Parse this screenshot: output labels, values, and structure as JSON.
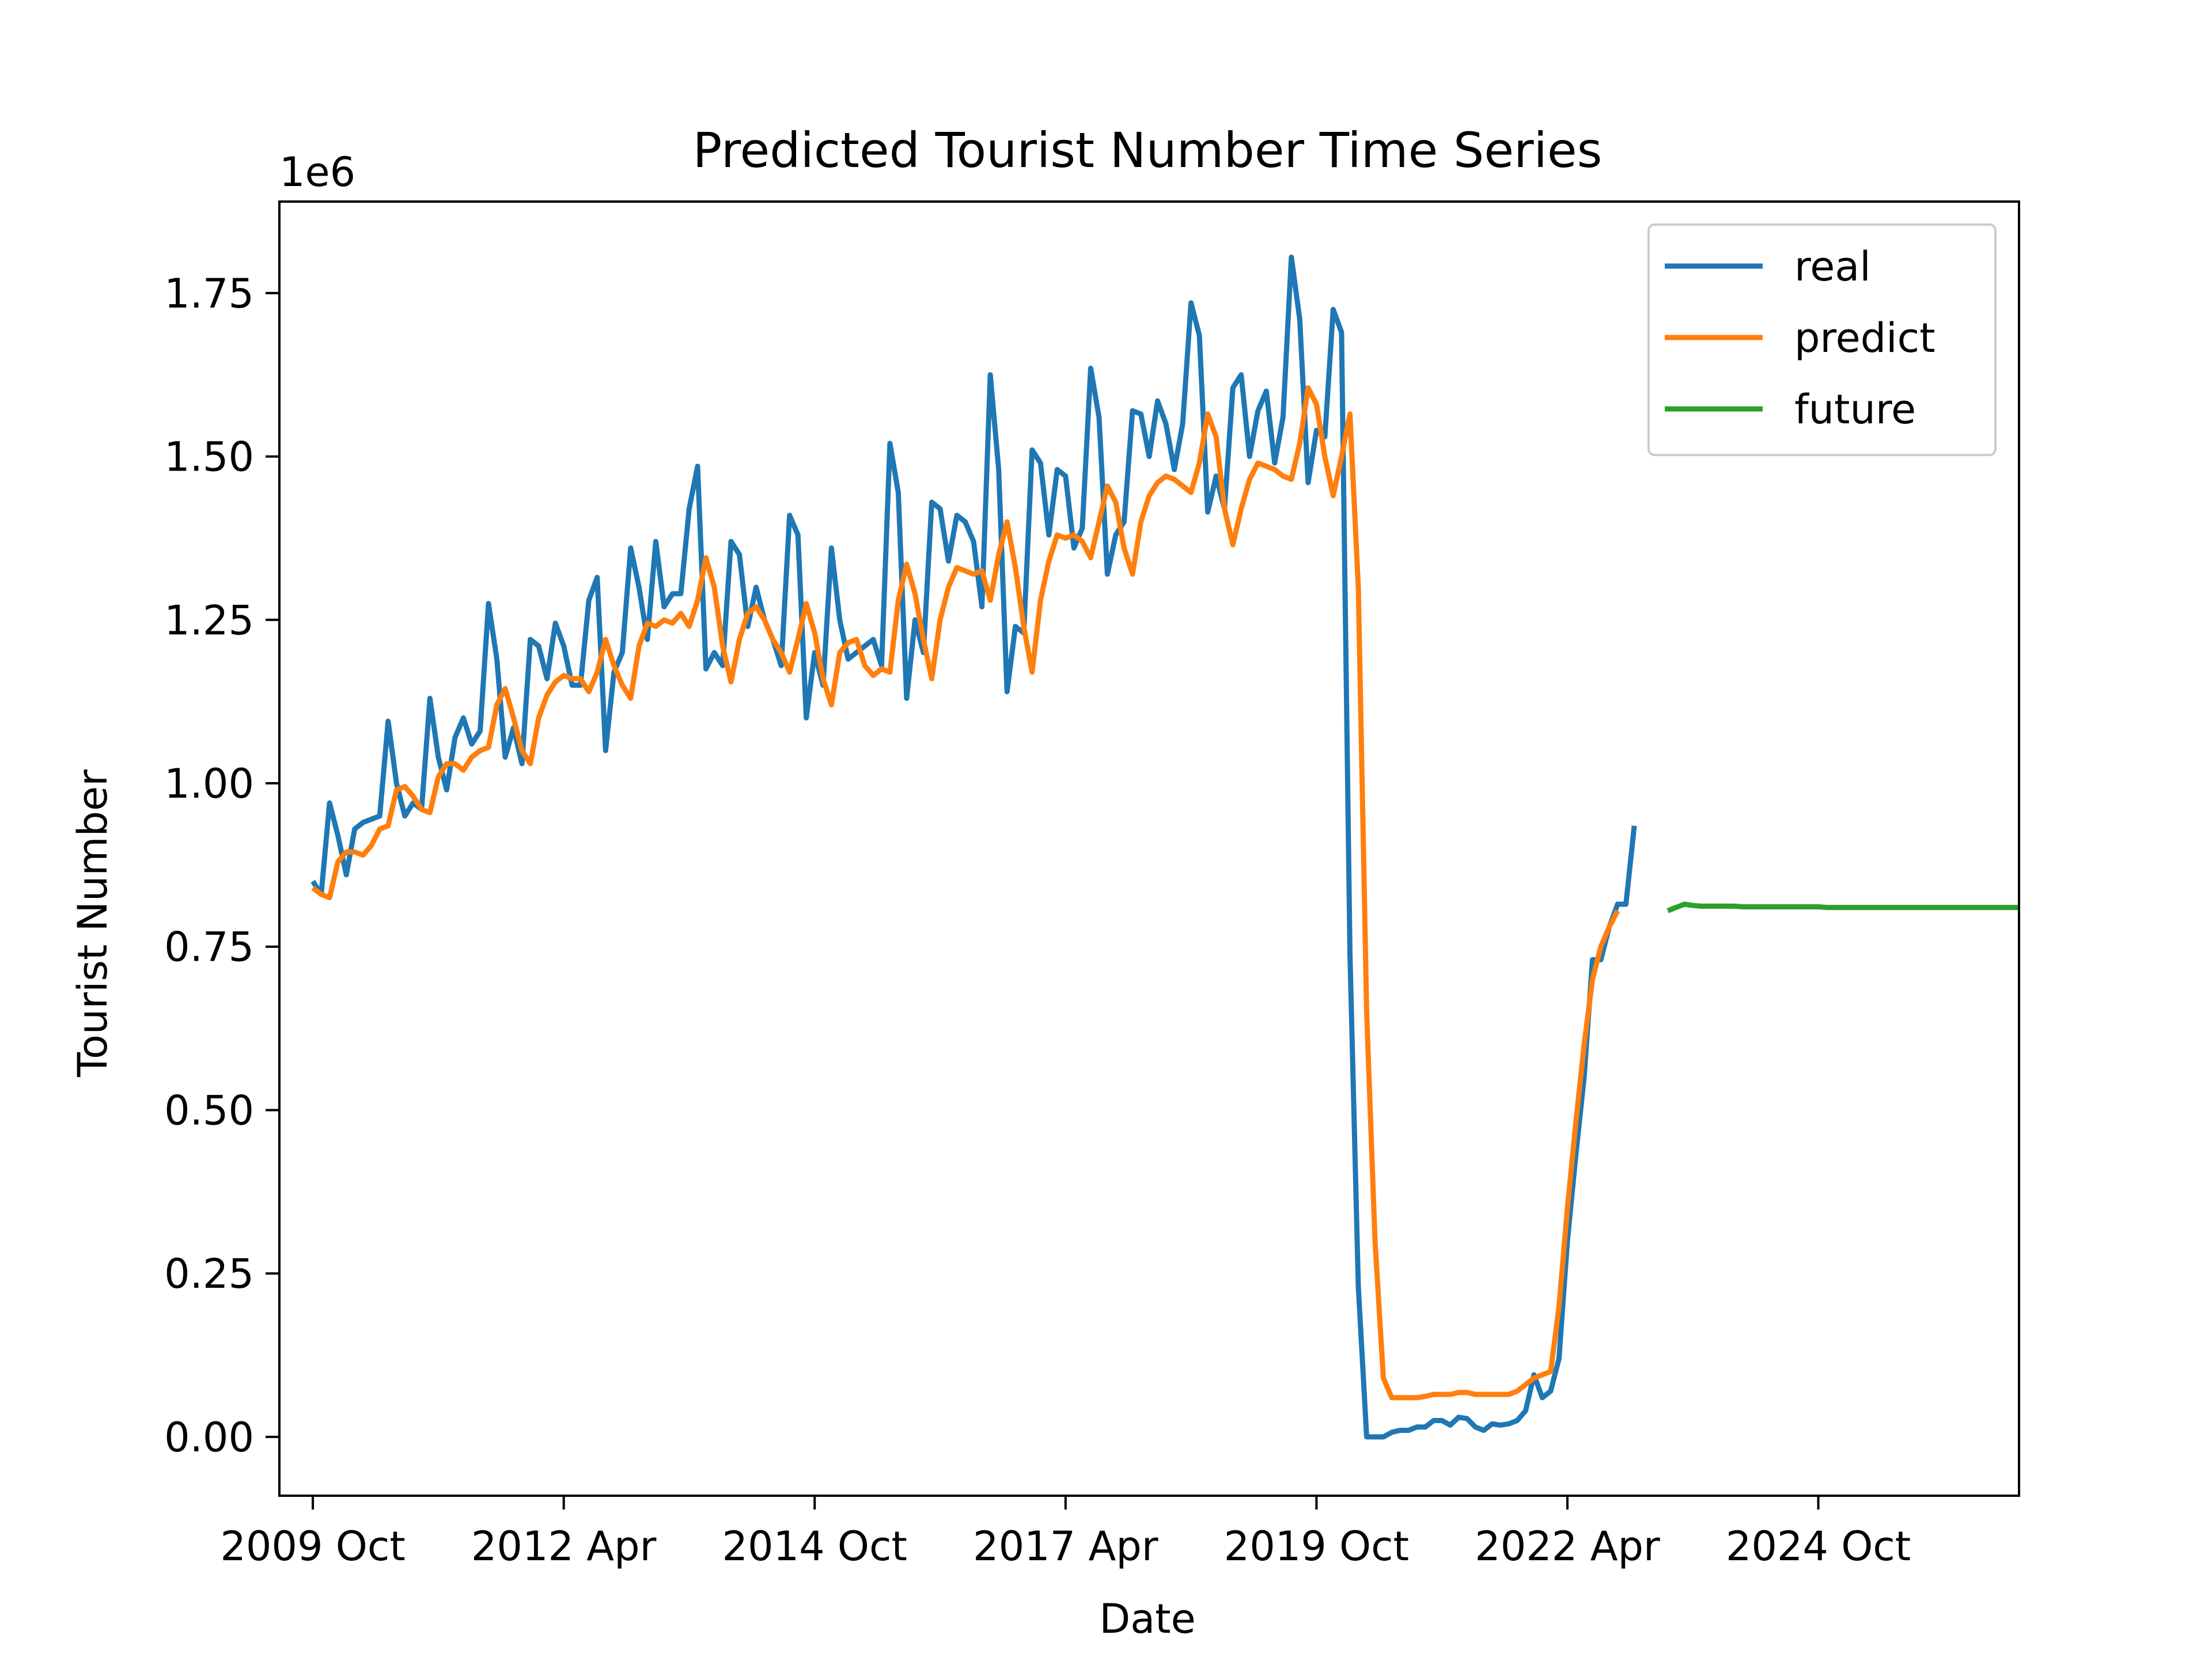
{
  "chart_data": {
    "type": "line",
    "title": "Predicted Tourist Number Time Series",
    "xlabel": "Date",
    "ylabel": "Tourist Number",
    "y_offset_label": "1e6",
    "y_multiplier": 1000000,
    "xlim": [
      "2009-06",
      "2026-10"
    ],
    "ylim": [
      -0.09,
      1.89
    ],
    "x_ticks": [
      {
        "date": "2009-10",
        "label": "2009 Oct"
      },
      {
        "date": "2012-04",
        "label": "2012 Apr"
      },
      {
        "date": "2014-10",
        "label": "2014 Oct"
      },
      {
        "date": "2017-04",
        "label": "2017 Apr"
      },
      {
        "date": "2019-10",
        "label": "2019 Oct"
      },
      {
        "date": "2022-04",
        "label": "2022 Apr"
      },
      {
        "date": "2024-10",
        "label": "2024 Oct"
      }
    ],
    "y_ticks": [
      {
        "value": 0.0,
        "label": "0.00"
      },
      {
        "value": 0.25,
        "label": "0.25"
      },
      {
        "value": 0.5,
        "label": "0.50"
      },
      {
        "value": 0.75,
        "label": "0.75"
      },
      {
        "value": 1.0,
        "label": "1.00"
      },
      {
        "value": 1.25,
        "label": "1.25"
      },
      {
        "value": 1.5,
        "label": "1.50"
      },
      {
        "value": 1.75,
        "label": "1.75"
      }
    ],
    "grid": false,
    "legend_position": "top-right",
    "series": [
      {
        "name": "real",
        "color": "#1f77b4",
        "x_start": "2009-10",
        "step_months": 1,
        "values": [
          0.85,
          0.83,
          0.97,
          0.92,
          0.86,
          0.93,
          0.94,
          0.945,
          0.95,
          1.095,
          1.0,
          0.95,
          0.97,
          0.96,
          1.13,
          1.04,
          0.99,
          1.07,
          1.1,
          1.06,
          1.08,
          1.275,
          1.19,
          1.04,
          1.085,
          1.03,
          1.22,
          1.21,
          1.16,
          1.245,
          1.21,
          1.15,
          1.15,
          1.28,
          1.315,
          1.05,
          1.17,
          1.2,
          1.36,
          1.3,
          1.22,
          1.37,
          1.27,
          1.29,
          1.29,
          1.42,
          1.485,
          1.175,
          1.2,
          1.18,
          1.37,
          1.35,
          1.24,
          1.3,
          1.25,
          1.22,
          1.18,
          1.41,
          1.38,
          1.1,
          1.2,
          1.15,
          1.36,
          1.25,
          1.19,
          1.2,
          1.21,
          1.22,
          1.18,
          1.52,
          1.445,
          1.13,
          1.25,
          1.2,
          1.43,
          1.42,
          1.34,
          1.41,
          1.4,
          1.37,
          1.27,
          1.625,
          1.48,
          1.14,
          1.24,
          1.23,
          1.51,
          1.49,
          1.38,
          1.48,
          1.47,
          1.36,
          1.39,
          1.635,
          1.56,
          1.32,
          1.38,
          1.4,
          1.57,
          1.565,
          1.5,
          1.585,
          1.55,
          1.48,
          1.55,
          1.735,
          1.685,
          1.415,
          1.47,
          1.42,
          1.605,
          1.625,
          1.5,
          1.57,
          1.6,
          1.49,
          1.56,
          1.805,
          1.71,
          1.46,
          1.54,
          1.53,
          1.725,
          1.69,
          0.74,
          0.23,
          0.0,
          0.0,
          0.0,
          0.007,
          0.01,
          0.01,
          0.015,
          0.015,
          0.025,
          0.025,
          0.018,
          0.03,
          0.028,
          0.015,
          0.01,
          0.02,
          0.018,
          0.02,
          0.025,
          0.04,
          0.095,
          0.06,
          0.07,
          0.12,
          0.3,
          0.43,
          0.55,
          0.73,
          0.73,
          0.78,
          0.815,
          0.815,
          0.935
        ]
      },
      {
        "name": "predict",
        "color": "#ff7f0e",
        "x_start": "2009-10",
        "step_months": 1,
        "values": [
          0.84,
          0.83,
          0.825,
          0.88,
          0.895,
          0.895,
          0.89,
          0.905,
          0.93,
          0.935,
          0.99,
          0.995,
          0.98,
          0.96,
          0.955,
          1.01,
          1.03,
          1.03,
          1.02,
          1.04,
          1.05,
          1.055,
          1.12,
          1.145,
          1.1,
          1.05,
          1.03,
          1.1,
          1.135,
          1.155,
          1.165,
          1.16,
          1.16,
          1.14,
          1.17,
          1.22,
          1.18,
          1.15,
          1.13,
          1.21,
          1.245,
          1.24,
          1.25,
          1.245,
          1.26,
          1.24,
          1.28,
          1.345,
          1.3,
          1.21,
          1.155,
          1.22,
          1.26,
          1.27,
          1.25,
          1.22,
          1.2,
          1.17,
          1.22,
          1.275,
          1.23,
          1.16,
          1.12,
          1.2,
          1.215,
          1.22,
          1.18,
          1.165,
          1.175,
          1.17,
          1.28,
          1.335,
          1.29,
          1.22,
          1.16,
          1.25,
          1.3,
          1.33,
          1.325,
          1.32,
          1.325,
          1.28,
          1.35,
          1.4,
          1.33,
          1.24,
          1.17,
          1.28,
          1.34,
          1.38,
          1.375,
          1.38,
          1.37,
          1.345,
          1.4,
          1.455,
          1.43,
          1.36,
          1.32,
          1.4,
          1.44,
          1.46,
          1.47,
          1.465,
          1.455,
          1.445,
          1.49,
          1.565,
          1.53,
          1.42,
          1.365,
          1.42,
          1.465,
          1.49,
          1.485,
          1.48,
          1.47,
          1.465,
          1.52,
          1.605,
          1.58,
          1.5,
          1.44,
          1.5,
          1.565,
          1.3,
          0.65,
          0.3,
          0.09,
          0.06,
          0.06,
          0.06,
          0.06,
          0.062,
          0.065,
          0.065,
          0.065,
          0.068,
          0.068,
          0.065,
          0.065,
          0.065,
          0.065,
          0.065,
          0.07,
          0.08,
          0.09,
          0.095,
          0.1,
          0.2,
          0.35,
          0.48,
          0.6,
          0.7,
          0.75,
          0.78,
          0.805
        ]
      },
      {
        "name": "future",
        "color": "#2ca02c",
        "x_start": "2023-04",
        "step_months": 1,
        "values": [
          0.805,
          0.81,
          0.815,
          0.813,
          0.812,
          0.812,
          0.812,
          0.812,
          0.812,
          0.811,
          0.811,
          0.811,
          0.811,
          0.811,
          0.811,
          0.811,
          0.811,
          0.811,
          0.811,
          0.81,
          0.81,
          0.81,
          0.81,
          0.81,
          0.81,
          0.81,
          0.81,
          0.81,
          0.81,
          0.81,
          0.81,
          0.81,
          0.81,
          0.81,
          0.81,
          0.81,
          0.81,
          0.81,
          0.81,
          0.81,
          0.81,
          0.81,
          0.81,
          0.81,
          0.81,
          0.81,
          0.81,
          0.81,
          0.81,
          0.809,
          0.809,
          0.809,
          0.809,
          0.809,
          0.809,
          0.809,
          0.809,
          0.809,
          0.809,
          0.809,
          0.809
        ]
      }
    ]
  }
}
